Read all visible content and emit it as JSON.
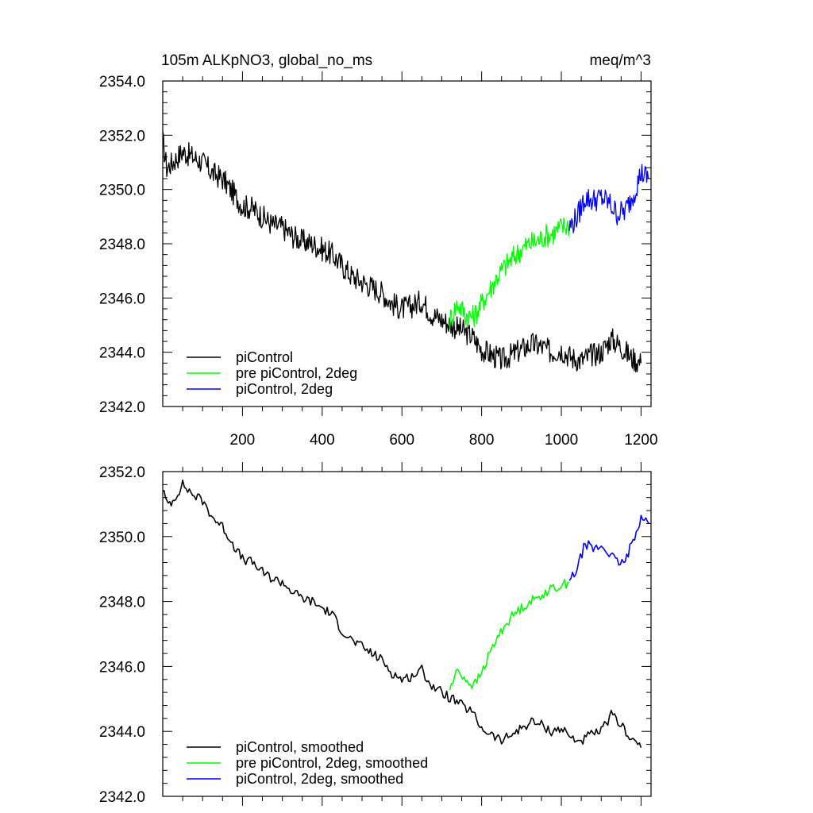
{
  "figure": {
    "title_left": "105m ALKpNO3, global_no_ms",
    "title_right": "meq/m^3"
  },
  "chart_data": [
    {
      "type": "line",
      "title": "105m ALKpNO3, global_no_ms",
      "units": "meq/m^3",
      "xlabel": "",
      "ylabel": "",
      "xlim": [
        0,
        1225
      ],
      "ylim": [
        2342.0,
        2354.0
      ],
      "x_ticks": [
        200,
        400,
        600,
        800,
        1000,
        1200
      ],
      "x_tick_labels": [
        "200",
        "400",
        "600",
        "800",
        "1000",
        "1200"
      ],
      "y_ticks": [
        2342.0,
        2344.0,
        2346.0,
        2348.0,
        2350.0,
        2352.0,
        2354.0
      ],
      "y_tick_labels": [
        "2342.0",
        "2344.0",
        "2346.0",
        "2348.0",
        "2350.0",
        "2352.0",
        "2354.0"
      ],
      "grid": false,
      "legend_position": "bottom-left",
      "series": [
        {
          "name": "piControl",
          "color": "#000000",
          "x": [
            0,
            10,
            25,
            50,
            75,
            100,
            125,
            150,
            175,
            200,
            225,
            250,
            275,
            300,
            325,
            350,
            375,
            400,
            425,
            450,
            475,
            500,
            525,
            550,
            575,
            600,
            625,
            650,
            675,
            700,
            725,
            750,
            775,
            800,
            825,
            850,
            875,
            900,
            925,
            950,
            975,
            1000,
            1025,
            1050,
            1075,
            1100,
            1125,
            1150,
            1175,
            1200
          ],
          "y": [
            2351.8,
            2350.8,
            2351.0,
            2351.4,
            2351.2,
            2351.0,
            2350.6,
            2350.4,
            2349.9,
            2349.4,
            2349.3,
            2349.0,
            2348.7,
            2348.6,
            2348.3,
            2348.1,
            2348.0,
            2347.8,
            2347.6,
            2347.2,
            2346.8,
            2346.6,
            2346.4,
            2346.2,
            2345.8,
            2345.6,
            2345.7,
            2345.9,
            2345.4,
            2345.2,
            2345.0,
            2344.8,
            2344.6,
            2344.1,
            2343.9,
            2343.7,
            2343.9,
            2344.1,
            2344.3,
            2344.2,
            2344.0,
            2344.1,
            2343.8,
            2343.7,
            2343.9,
            2344.0,
            2344.5,
            2344.2,
            2343.8,
            2343.6
          ]
        },
        {
          "name": "pre piControl, 2deg",
          "color": "#00ff00",
          "x": [
            720,
            740,
            760,
            780,
            800,
            820,
            840,
            860,
            880,
            900,
            920,
            940,
            960,
            980,
            1000,
            1020
          ],
          "y": [
            2345.2,
            2345.8,
            2345.4,
            2345.3,
            2345.8,
            2346.3,
            2346.8,
            2347.2,
            2347.5,
            2347.8,
            2348.0,
            2348.1,
            2348.3,
            2348.4,
            2348.6,
            2348.7
          ]
        },
        {
          "name": "piControl, 2deg",
          "color": "#0000ff",
          "x": [
            1020,
            1040,
            1060,
            1080,
            1100,
            1120,
            1140,
            1160,
            1180,
            1200,
            1220
          ],
          "y": [
            2348.6,
            2349.0,
            2349.7,
            2349.6,
            2349.7,
            2349.5,
            2349.1,
            2349.2,
            2349.8,
            2350.6,
            2350.4
          ]
        }
      ]
    },
    {
      "type": "line",
      "title": "",
      "xlabel": "",
      "ylabel": "",
      "xlim": [
        0,
        1225
      ],
      "ylim": [
        2342.0,
        2352.0
      ],
      "x_ticks": [
        200,
        400,
        600,
        800,
        1000,
        1200
      ],
      "y_ticks": [
        2342.0,
        2344.0,
        2346.0,
        2348.0,
        2350.0,
        2352.0
      ],
      "y_tick_labels": [
        "2342.0",
        "2344.0",
        "2346.0",
        "2348.0",
        "2350.0",
        "2352.0"
      ],
      "grid": false,
      "legend_position": "bottom-left",
      "series": [
        {
          "name": "piControl, smoothed",
          "color": "#000000",
          "x": [
            0,
            10,
            25,
            50,
            75,
            100,
            125,
            150,
            175,
            200,
            225,
            250,
            275,
            300,
            325,
            350,
            375,
            400,
            425,
            450,
            475,
            500,
            525,
            550,
            575,
            600,
            625,
            650,
            675,
            700,
            725,
            750,
            775,
            800,
            825,
            850,
            875,
            900,
            925,
            950,
            975,
            1000,
            1025,
            1050,
            1075,
            1100,
            1125,
            1150,
            1175,
            1200
          ],
          "y": [
            2351.5,
            2351.0,
            2351.1,
            2351.6,
            2351.3,
            2351.1,
            2350.6,
            2350.3,
            2349.8,
            2349.3,
            2349.2,
            2348.9,
            2348.7,
            2348.6,
            2348.3,
            2348.1,
            2348.0,
            2347.8,
            2347.6,
            2347.1,
            2346.8,
            2346.6,
            2346.4,
            2346.2,
            2345.8,
            2345.6,
            2345.7,
            2345.9,
            2345.4,
            2345.2,
            2345.0,
            2344.8,
            2344.6,
            2344.1,
            2343.9,
            2343.7,
            2343.9,
            2344.1,
            2344.3,
            2344.2,
            2344.0,
            2344.1,
            2343.8,
            2343.7,
            2343.9,
            2344.0,
            2344.5,
            2344.2,
            2343.8,
            2343.5
          ]
        },
        {
          "name": "pre piControl, 2deg, smoothed",
          "color": "#00ff00",
          "x": [
            720,
            740,
            760,
            780,
            800,
            820,
            840,
            860,
            880,
            900,
            920,
            940,
            960,
            980,
            1000,
            1020
          ],
          "y": [
            2345.3,
            2345.9,
            2345.6,
            2345.4,
            2345.8,
            2346.4,
            2346.9,
            2347.3,
            2347.6,
            2347.8,
            2348.0,
            2348.1,
            2348.3,
            2348.4,
            2348.5,
            2348.6
          ]
        },
        {
          "name": "piControl, 2deg, smoothed",
          "color": "#0000ff",
          "x": [
            1020,
            1040,
            1060,
            1080,
            1100,
            1120,
            1140,
            1160,
            1180,
            1200,
            1220
          ],
          "y": [
            2348.6,
            2349.0,
            2349.8,
            2349.6,
            2349.7,
            2349.5,
            2349.2,
            2349.2,
            2349.9,
            2350.6,
            2350.4
          ]
        }
      ]
    }
  ]
}
